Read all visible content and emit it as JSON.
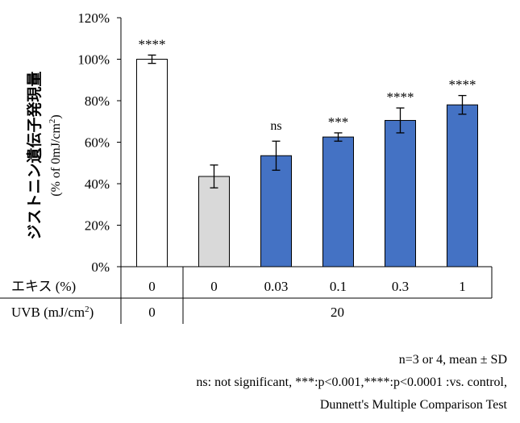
{
  "chart_data": {
    "type": "bar",
    "ylabel": "ジストニン遺伝子発現量",
    "ylabel_sub": {
      "prefix": "(% of 0mJ/cm",
      "sup": "2",
      "suffix": ")"
    },
    "ylim": [
      0,
      120
    ],
    "yticks": [
      "0%",
      "20%",
      "40%",
      "60%",
      "80%",
      "100%",
      "120%"
    ],
    "bars": [
      {
        "value": 100,
        "error": 2,
        "color": "#ffffff",
        "sig": "****"
      },
      {
        "value": 43.5,
        "error": 5.5,
        "color": "#d9d9d9",
        "sig": ""
      },
      {
        "value": 53.5,
        "error": 7,
        "color": "#4472c4",
        "sig": "ns"
      },
      {
        "value": 62.5,
        "error": 2,
        "color": "#4472c4",
        "sig": "***"
      },
      {
        "value": 70.5,
        "error": 6,
        "color": "#4472c4",
        "sig": "****"
      },
      {
        "value": 78,
        "error": 4.5,
        "color": "#4472c4",
        "sig": "****"
      }
    ],
    "table": {
      "row1_label": "エキス (%)",
      "row1_values": [
        "0",
        "0",
        "0.03",
        "0.1",
        "0.3",
        "1"
      ],
      "row2_label": {
        "prefix": "UVB (mJ/cm",
        "sup": "2",
        "suffix": ")"
      },
      "row2_values": [
        "0",
        "20"
      ]
    },
    "grid": false,
    "legend": "none"
  },
  "footnotes": {
    "line1": "n=3 or 4, mean ± SD",
    "line2": "ns: not significant, ***:p<0.001,****:p<0.0001 :vs.  control,",
    "line3": "Dunnett's Multiple Comparison Test"
  }
}
